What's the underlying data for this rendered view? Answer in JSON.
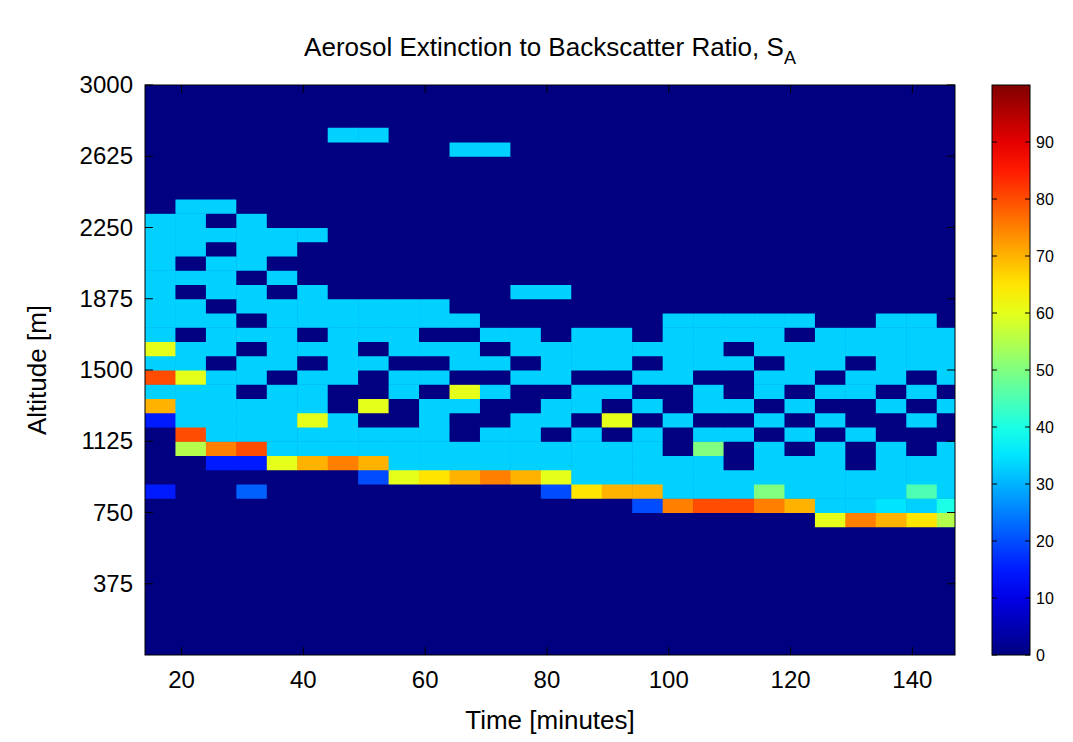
{
  "chart_data": {
    "type": "heatmap",
    "title": "Aerosol Extinction to Backscatter Ratio, S",
    "title_subscript": "A",
    "x_label": "Time [minutes]",
    "y_label": "Altitude [m]",
    "xlim": [
      14,
      147
    ],
    "ylim": [
      0,
      3000
    ],
    "xticks": [
      20,
      40,
      60,
      80,
      100,
      120,
      140
    ],
    "yticks": [
      375,
      750,
      1125,
      1500,
      1875,
      2250,
      2625,
      3000
    ],
    "x_edges": [
      14,
      19,
      24,
      29,
      34,
      39,
      44,
      49,
      54,
      59,
      64,
      69,
      74,
      79,
      84,
      89,
      94,
      99,
      104,
      109,
      114,
      119,
      124,
      129,
      134,
      139,
      144,
      149
    ],
    "y_edges": [
      600,
      675,
      750,
      825,
      900,
      975,
      1050,
      1125,
      1200,
      1275,
      1350,
      1425,
      1500,
      1575,
      1650,
      1725,
      1800,
      1875,
      1950,
      2025,
      2100,
      2175,
      2250,
      2325,
      2400,
      2475,
      2550,
      2625,
      2700,
      2775
    ],
    "cells": [
      [
        0,
        0,
        0,
        0,
        0,
        0,
        0,
        0,
        0,
        0,
        0,
        0,
        0,
        0,
        0,
        0,
        0,
        0,
        0,
        0,
        0,
        0,
        0,
        0,
        0,
        0,
        0
      ],
      [
        0,
        0,
        0,
        0,
        0,
        0,
        0,
        0,
        0,
        0,
        0,
        0,
        0,
        0,
        0,
        0,
        0,
        0,
        0,
        0,
        0,
        0,
        60,
        75,
        70,
        65,
        55
      ],
      [
        0,
        0,
        0,
        0,
        0,
        0,
        0,
        0,
        0,
        0,
        0,
        0,
        0,
        0,
        0,
        0,
        20,
        75,
        80,
        80,
        75,
        70,
        33,
        33,
        35,
        33,
        40
      ],
      [
        15,
        0,
        0,
        22,
        0,
        0,
        0,
        0,
        0,
        0,
        0,
        0,
        0,
        20,
        65,
        70,
        70,
        33,
        33,
        33,
        50,
        33,
        33,
        33,
        33,
        45,
        33
      ],
      [
        0,
        0,
        0,
        0,
        0,
        0,
        0,
        20,
        60,
        65,
        70,
        75,
        70,
        60,
        33,
        33,
        33,
        33,
        33,
        33,
        33,
        33,
        33,
        33,
        33,
        33,
        33
      ],
      [
        0,
        0,
        15,
        15,
        60,
        70,
        75,
        70,
        33,
        33,
        33,
        33,
        33,
        33,
        33,
        33,
        33,
        33,
        33,
        0,
        33,
        33,
        33,
        0,
        33,
        33,
        33
      ],
      [
        0,
        55,
        75,
        80,
        33,
        33,
        33,
        33,
        33,
        33,
        33,
        33,
        33,
        33,
        33,
        33,
        33,
        0,
        50,
        0,
        33,
        0,
        33,
        0,
        33,
        0,
        33
      ],
      [
        0,
        80,
        33,
        33,
        33,
        33,
        33,
        33,
        33,
        33,
        0,
        33,
        33,
        0,
        33,
        0,
        33,
        0,
        33,
        33,
        0,
        33,
        0,
        33,
        0,
        0,
        0
      ],
      [
        15,
        33,
        33,
        33,
        33,
        60,
        33,
        0,
        0,
        33,
        0,
        0,
        33,
        33,
        0,
        60,
        0,
        33,
        0,
        0,
        33,
        0,
        33,
        0,
        0,
        33,
        0
      ],
      [
        70,
        33,
        33,
        33,
        33,
        33,
        0,
        60,
        0,
        33,
        33,
        0,
        0,
        33,
        33,
        0,
        33,
        0,
        33,
        33,
        0,
        33,
        0,
        0,
        33,
        0,
        33
      ],
      [
        33,
        33,
        33,
        0,
        33,
        33,
        0,
        0,
        33,
        0,
        60,
        33,
        0,
        0,
        33,
        33,
        0,
        0,
        33,
        0,
        33,
        0,
        33,
        33,
        0,
        33,
        0
      ],
      [
        80,
        60,
        33,
        33,
        0,
        33,
        33,
        0,
        33,
        33,
        0,
        0,
        33,
        33,
        0,
        0,
        33,
        33,
        0,
        0,
        33,
        33,
        0,
        33,
        33,
        0,
        33
      ],
      [
        33,
        33,
        0,
        33,
        33,
        0,
        33,
        33,
        0,
        0,
        33,
        33,
        0,
        33,
        33,
        33,
        0,
        33,
        33,
        33,
        0,
        33,
        33,
        0,
        33,
        33,
        33
      ],
      [
        60,
        33,
        33,
        0,
        33,
        33,
        33,
        0,
        33,
        33,
        33,
        0,
        33,
        33,
        33,
        33,
        33,
        33,
        33,
        0,
        33,
        33,
        33,
        33,
        33,
        33,
        33
      ],
      [
        33,
        0,
        33,
        33,
        33,
        0,
        33,
        33,
        33,
        0,
        0,
        33,
        33,
        0,
        33,
        33,
        0,
        33,
        33,
        33,
        33,
        0,
        33,
        33,
        33,
        33,
        33
      ],
      [
        33,
        33,
        33,
        0,
        33,
        33,
        33,
        33,
        33,
        33,
        33,
        0,
        0,
        0,
        0,
        0,
        0,
        33,
        33,
        33,
        33,
        33,
        0,
        0,
        33,
        33,
        0
      ],
      [
        33,
        33,
        0,
        33,
        33,
        33,
        33,
        33,
        33,
        33,
        0,
        0,
        0,
        0,
        0,
        0,
        0,
        0,
        0,
        0,
        0,
        0,
        0,
        0,
        0,
        0,
        0
      ],
      [
        33,
        0,
        33,
        33,
        0,
        33,
        0,
        0,
        0,
        0,
        0,
        0,
        33,
        33,
        0,
        0,
        0,
        0,
        0,
        0,
        0,
        0,
        0,
        0,
        0,
        0,
        0
      ],
      [
        33,
        33,
        33,
        0,
        33,
        0,
        0,
        0,
        0,
        0,
        0,
        0,
        0,
        0,
        0,
        0,
        0,
        0,
        0,
        0,
        0,
        0,
        0,
        0,
        0,
        0,
        0
      ],
      [
        33,
        0,
        33,
        33,
        0,
        0,
        0,
        0,
        0,
        0,
        0,
        0,
        0,
        0,
        0,
        0,
        0,
        0,
        0,
        0,
        0,
        0,
        0,
        0,
        0,
        0,
        0
      ],
      [
        33,
        33,
        0,
        33,
        33,
        0,
        0,
        0,
        0,
        0,
        0,
        0,
        0,
        0,
        0,
        0,
        0,
        0,
        0,
        0,
        0,
        0,
        0,
        0,
        0,
        0,
        0
      ],
      [
        33,
        33,
        33,
        33,
        33,
        33,
        0,
        0,
        0,
        0,
        0,
        0,
        0,
        0,
        0,
        0,
        0,
        0,
        0,
        0,
        0,
        0,
        0,
        0,
        0,
        0,
        0
      ],
      [
        33,
        33,
        0,
        33,
        0,
        0,
        0,
        0,
        0,
        0,
        0,
        0,
        0,
        0,
        0,
        0,
        0,
        0,
        0,
        0,
        0,
        0,
        0,
        0,
        0,
        0,
        0
      ],
      [
        0,
        33,
        33,
        0,
        0,
        0,
        0,
        0,
        0,
        0,
        0,
        0,
        0,
        0,
        0,
        0,
        0,
        0,
        0,
        0,
        0,
        0,
        0,
        0,
        0,
        0,
        0
      ],
      [
        0,
        0,
        0,
        0,
        0,
        0,
        0,
        0,
        0,
        0,
        0,
        0,
        0,
        0,
        0,
        0,
        0,
        0,
        0,
        0,
        0,
        0,
        0,
        0,
        0,
        0,
        0
      ],
      [
        0,
        0,
        0,
        0,
        0,
        0,
        0,
        0,
        0,
        0,
        0,
        0,
        0,
        0,
        0,
        0,
        0,
        0,
        0,
        0,
        0,
        0,
        0,
        0,
        0,
        0,
        0
      ],
      [
        0,
        0,
        0,
        0,
        0,
        0,
        0,
        0,
        0,
        0,
        0,
        0,
        0,
        0,
        0,
        0,
        0,
        0,
        0,
        0,
        0,
        0,
        0,
        0,
        0,
        0,
        0
      ],
      [
        0,
        0,
        0,
        0,
        0,
        0,
        0,
        0,
        0,
        0,
        33,
        33,
        0,
        0,
        0,
        0,
        0,
        0,
        0,
        0,
        0,
        0,
        0,
        0,
        0,
        0,
        0
      ],
      [
        0,
        0,
        0,
        0,
        0,
        0,
        33,
        33,
        0,
        0,
        0,
        0,
        0,
        0,
        0,
        0,
        0,
        0,
        0,
        0,
        0,
        0,
        0,
        0,
        0,
        0,
        0
      ]
    ],
    "color_range": [
      0,
      100
    ],
    "color_ticks": [
      0,
      10,
      20,
      30,
      40,
      50,
      60,
      70,
      80,
      90
    ]
  }
}
